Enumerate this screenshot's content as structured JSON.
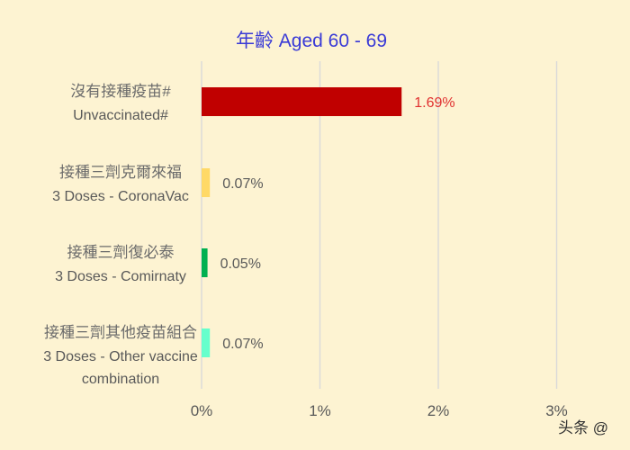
{
  "chart_data": {
    "type": "bar",
    "orientation": "horizontal",
    "title": "年齡 Aged 60 - 69",
    "categories": [
      {
        "zh": "沒有接種疫苗#",
        "en": [
          "Unvaccinated#"
        ]
      },
      {
        "zh": "接種三劑克爾來福",
        "en": [
          "3 Doses - CoronaVac"
        ]
      },
      {
        "zh": "接種三劑復必泰",
        "en": [
          "3 Doses - Comirnaty"
        ]
      },
      {
        "zh": "接種三劑其他疫苗組合",
        "en": [
          "3 Doses - Other vaccine",
          "combination"
        ]
      }
    ],
    "values": [
      1.69,
      0.07,
      0.05,
      0.07
    ],
    "value_labels": [
      "1.69%",
      "0.07%",
      "0.05%",
      "0.07%"
    ],
    "bar_colors": [
      "#c00000",
      "#ffd966",
      "#00b050",
      "#66ffcc"
    ],
    "label_colors": [
      "#e03030",
      "#595959",
      "#595959",
      "#595959"
    ],
    "xlim": [
      0,
      3.6
    ],
    "xticks": [
      0,
      1,
      2,
      3
    ],
    "xtick_labels": [
      "0%",
      "1%",
      "2%",
      "3%"
    ],
    "grid": true,
    "legend": "none"
  },
  "watermark": "头条 @"
}
